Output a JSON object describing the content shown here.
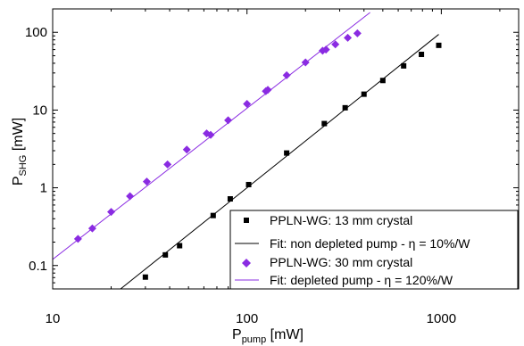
{
  "colors": {
    "series1": "#000000",
    "series2": "#8a2be2",
    "fit1": "#000000",
    "fit2": "#8a2be2"
  },
  "chart_data": {
    "type": "scatter",
    "x_scale": "log",
    "y_scale": "log",
    "xlim": [
      10,
      2500
    ],
    "ylim": [
      0.05,
      200
    ],
    "xlabel": {
      "main": "P",
      "sub": "pump",
      "unit": " [mW]"
    },
    "ylabel": {
      "main": "P",
      "sub": "SHG",
      "unit": " [mW]"
    },
    "x_ticks": [
      {
        "value": 10,
        "label": "10"
      },
      {
        "value": 100,
        "label": "100"
      },
      {
        "value": 1000,
        "label": "1000"
      }
    ],
    "y_ticks": [
      {
        "value": 0.1,
        "label": "0.1"
      },
      {
        "value": 1,
        "label": "1"
      },
      {
        "value": 10,
        "label": "10"
      },
      {
        "value": 100,
        "label": "100"
      }
    ],
    "legend_position": "bottom-right",
    "grid": false,
    "series": [
      {
        "name": "PPLN-WG: 13 mm crystal",
        "marker": "square",
        "color": "#000000",
        "points": [
          [
            30,
            0.071
          ],
          [
            38,
            0.137
          ],
          [
            45,
            0.18
          ],
          [
            67,
            0.44
          ],
          [
            82,
            0.72
          ],
          [
            102,
            1.1
          ],
          [
            160,
            2.8
          ],
          [
            250,
            6.7
          ],
          [
            320,
            10.7
          ],
          [
            400,
            16
          ],
          [
            500,
            24
          ],
          [
            640,
            37
          ],
          [
            790,
            52
          ],
          [
            970,
            68
          ]
        ]
      },
      {
        "name": "PPLN-WG: 30 mm crystal",
        "marker": "diamond",
        "color": "#8a2be2",
        "points": [
          [
            13.5,
            0.22
          ],
          [
            16,
            0.3
          ],
          [
            20,
            0.49
          ],
          [
            25,
            0.78
          ],
          [
            30.5,
            1.2
          ],
          [
            39,
            2.0
          ],
          [
            49,
            3.1
          ],
          [
            62,
            5.0
          ],
          [
            65,
            4.8
          ],
          [
            80,
            7.4
          ],
          [
            100,
            12
          ],
          [
            125,
            17.5
          ],
          [
            128,
            18.2
          ],
          [
            160,
            28
          ],
          [
            200,
            41
          ],
          [
            245,
            58
          ],
          [
            255,
            60
          ],
          [
            285,
            70
          ],
          [
            330,
            85
          ],
          [
            370,
            97
          ]
        ]
      }
    ],
    "fits": [
      {
        "name": "Fit: non depleted pump - η = 10%/W",
        "color": "#000000",
        "x": [
          22,
          970
        ],
        "y": [
          0.0484,
          94.09
        ]
      },
      {
        "name": "Fit: depleted pump - η = 120%/W",
        "color": "#8a2be2",
        "x": [
          10,
          430
        ],
        "y": [
          0.12,
          180
        ]
      }
    ]
  }
}
